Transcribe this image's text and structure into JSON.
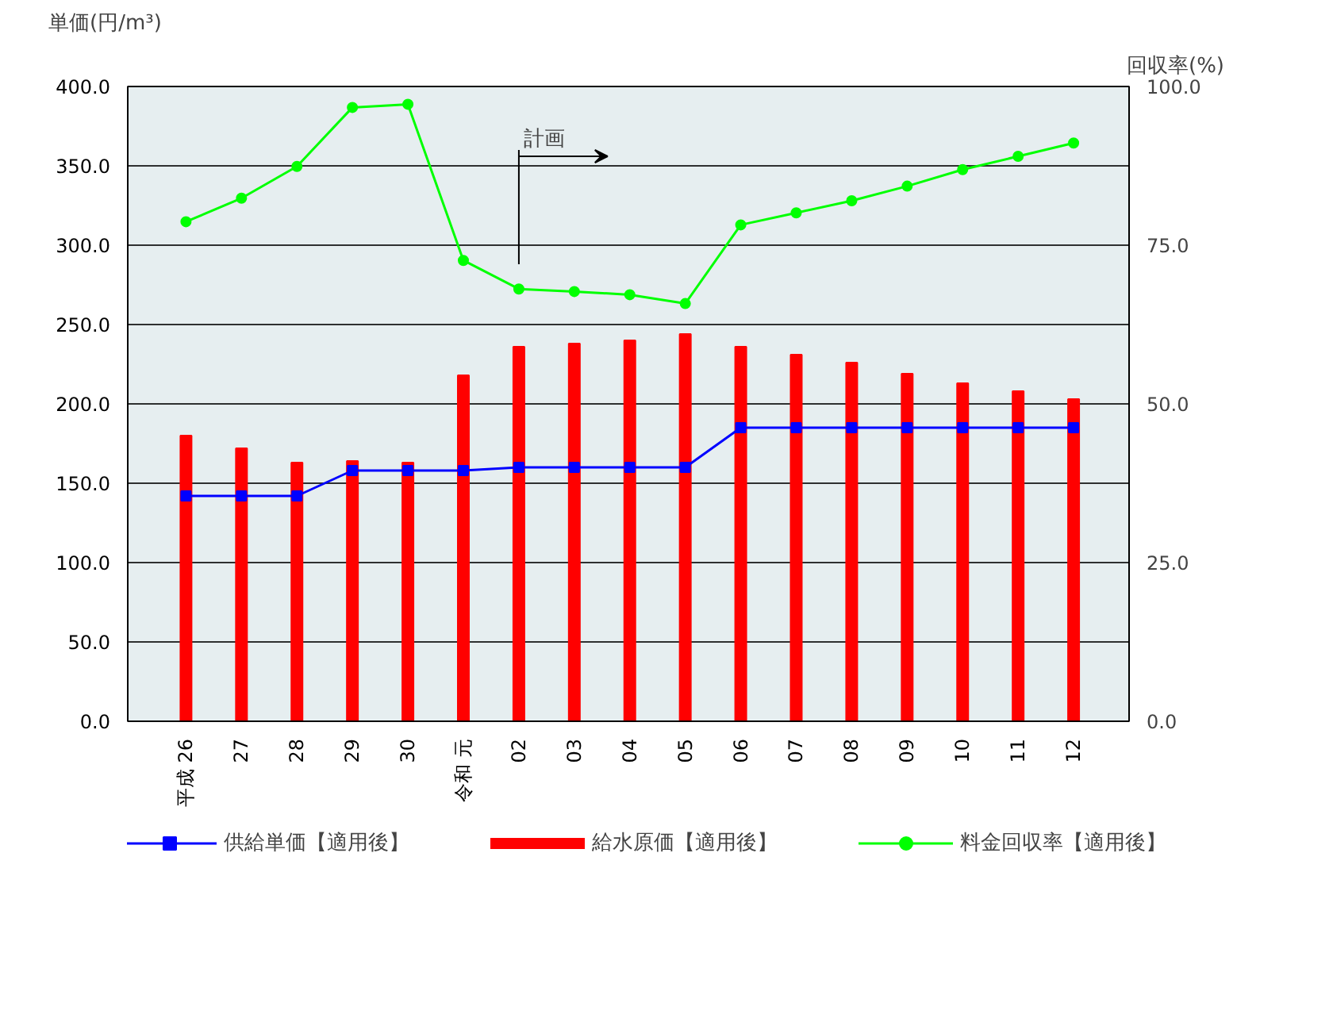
{
  "chart_data": {
    "type": "bar",
    "ylabel": "単価(円/m³)",
    "y2label": "回収率(%)",
    "categories": [
      "平成 26",
      "27",
      "28",
      "29",
      "30",
      "令和 元",
      "02",
      "03",
      "04",
      "05",
      "06",
      "07",
      "08",
      "09",
      "10",
      "11",
      "12"
    ],
    "series": [
      {
        "name": "供給単価【適用後】",
        "type": "line",
        "color": "#0000ff",
        "marker": "square",
        "values": [
          142,
          142,
          142,
          158,
          158,
          158,
          160,
          160,
          160,
          160,
          185,
          185,
          185,
          185,
          185,
          185,
          185
        ]
      },
      {
        "name": "給水原価【適用後】",
        "color": "#ff0000",
        "values": [
          180,
          172,
          163,
          164,
          163,
          218,
          236,
          238,
          240,
          244,
          236,
          231,
          226,
          219,
          213,
          208,
          203
        ]
      },
      {
        "name": "料金回収率【適用後】",
        "type": "line",
        "color": "#00ff00",
        "marker": "circle",
        "axis": "y2",
        "values": [
          78.7,
          82.4,
          87.4,
          96.7,
          97.2,
          72.6,
          68.1,
          67.7,
          67.2,
          65.8,
          78.2,
          80.1,
          82.0,
          84.3,
          86.9,
          89.0,
          91.1
        ]
      }
    ],
    "ylim": [
      0,
      400
    ],
    "yticks": [
      {
        "value": 0,
        "label": "0.0"
      },
      {
        "value": 50,
        "label": "50.0"
      },
      {
        "value": 100,
        "label": "100.0"
      },
      {
        "value": 150,
        "label": "150.0"
      },
      {
        "value": 200,
        "label": "200.0"
      },
      {
        "value": 250,
        "label": "250.0"
      },
      {
        "value": 300,
        "label": "300.0"
      },
      {
        "value": 350,
        "label": "350.0"
      },
      {
        "value": 400,
        "label": "400.0"
      }
    ],
    "y2lim": [
      0,
      100
    ],
    "y2ticks": [
      {
        "value": 0,
        "label": "0.0"
      },
      {
        "value": 25,
        "label": "25.0"
      },
      {
        "value": 50,
        "label": "50.0"
      },
      {
        "value": 75,
        "label": "75.0"
      },
      {
        "value": 100,
        "label": "100.0"
      }
    ],
    "annotations": [
      "計画"
    ],
    "grid": "y",
    "legend": "bottom"
  }
}
